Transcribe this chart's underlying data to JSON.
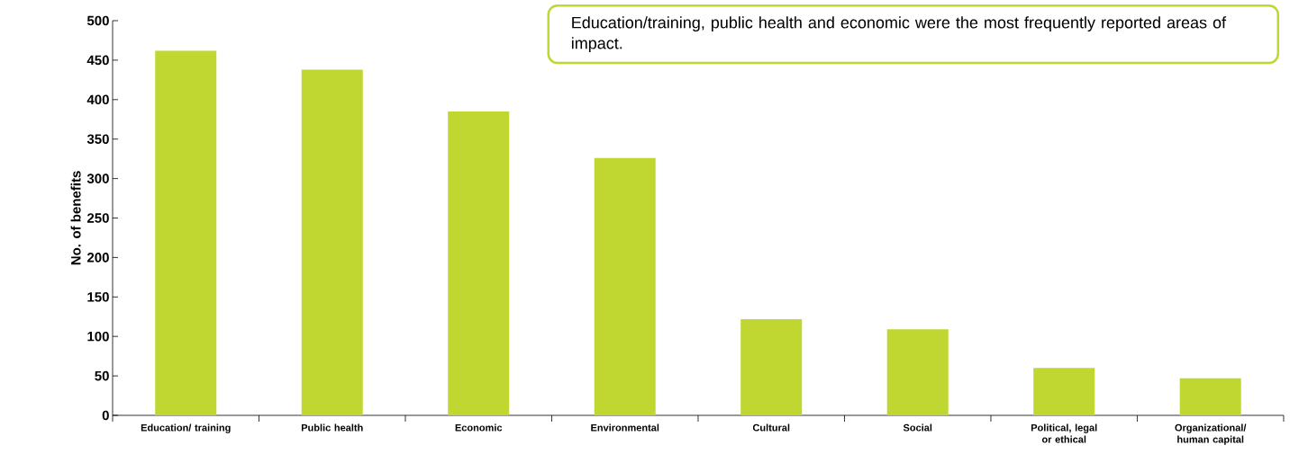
{
  "chart_data": {
    "type": "bar",
    "ylabel": "No. of benefits",
    "categories": [
      "Education/ training",
      "Public health",
      "Economic",
      "Environmental",
      "Cultural",
      "Social",
      "Political, legal or ethical",
      "Organizational/ human capital"
    ],
    "values": [
      462,
      438,
      385,
      326,
      122,
      109,
      60,
      47
    ],
    "color": "#bfd730",
    "ylim": [
      0,
      500
    ],
    "yticks": [
      0,
      50,
      100,
      150,
      200,
      250,
      300,
      350,
      400,
      450,
      500
    ],
    "annotations": [
      "Education/training, public health and economic were the most frequently reported areas of impact."
    ]
  }
}
